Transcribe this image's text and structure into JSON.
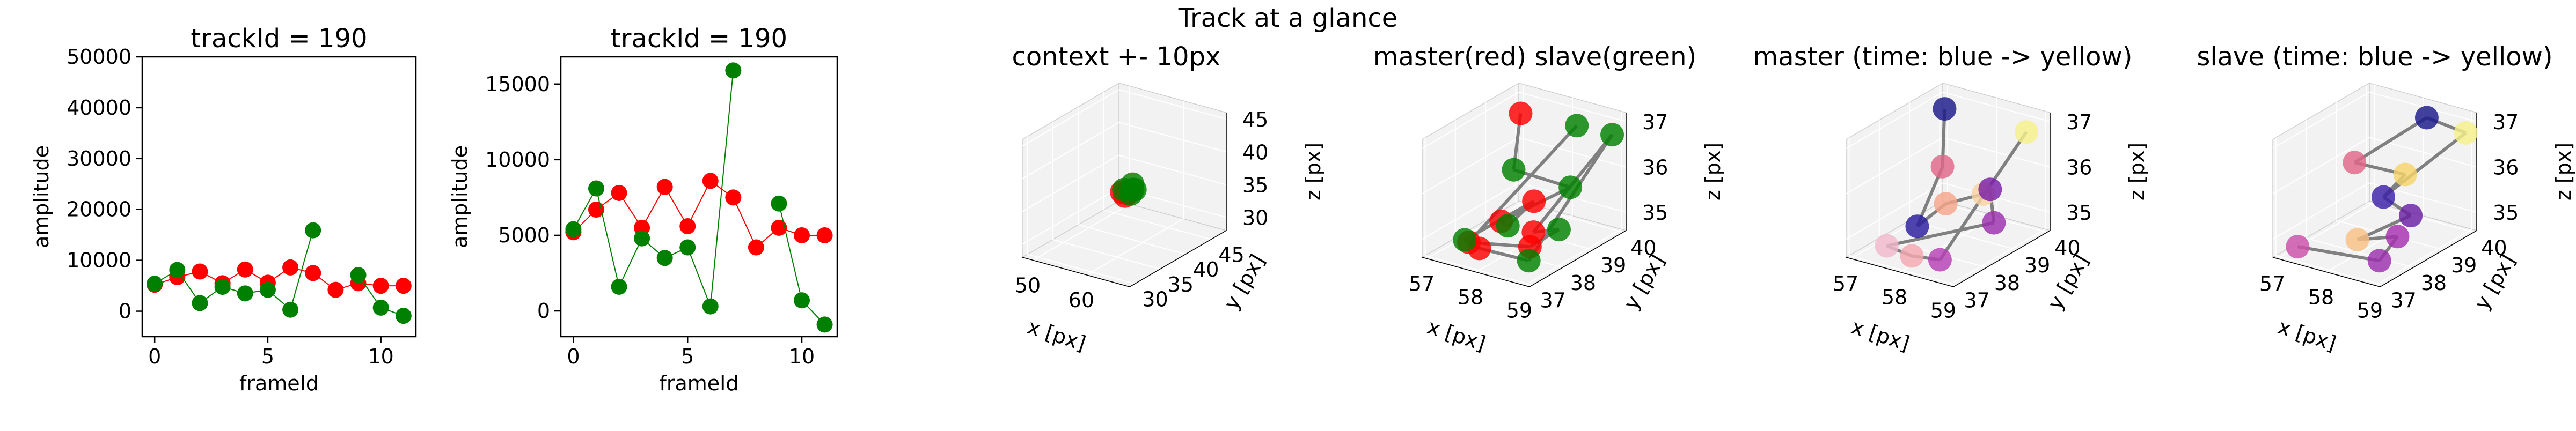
{
  "figure_title": "Track at a glance",
  "colors": {
    "master": "#ff0000",
    "slave": "#008000",
    "line_gray": "#808080",
    "pane": "#f2f2f2",
    "grid": "#e6e6e6"
  },
  "chart_data": [
    {
      "type": "line",
      "title": "trackId = 190",
      "xlabel": "frameId",
      "ylabel": "amplitude",
      "xlim": [
        -0.55,
        11.55
      ],
      "ylim": [
        -5000,
        50000
      ],
      "xticks": [
        0,
        5,
        10
      ],
      "yticks": [
        0,
        10000,
        20000,
        30000,
        40000,
        50000
      ],
      "series": [
        {
          "color": "#ff0000",
          "x": [
            0,
            1,
            2,
            3,
            4,
            5,
            6,
            7,
            8,
            9,
            10,
            11
          ],
          "y": [
            5200,
            6700,
            7800,
            5500,
            8200,
            5600,
            8600,
            7500,
            4200,
            5500,
            5000,
            5000
          ]
        },
        {
          "color": "#008000",
          "x": [
            0,
            1,
            2,
            3,
            4,
            5,
            6,
            7,
            8,
            9,
            10,
            11
          ],
          "y": [
            5400,
            8100,
            1600,
            4800,
            3500,
            4200,
            300,
            15900,
            null,
            7100,
            700,
            -900
          ]
        }
      ]
    },
    {
      "type": "line",
      "title": "trackId = 190",
      "xlabel": "frameId",
      "ylabel": "amplitude",
      "xlim": [
        -0.55,
        11.55
      ],
      "ylim": [
        -1700,
        16800
      ],
      "xticks": [
        0,
        5,
        10
      ],
      "yticks": [
        0,
        5000,
        10000,
        15000
      ],
      "series": [
        {
          "color": "#ff0000",
          "x": [
            0,
            1,
            2,
            3,
            4,
            5,
            6,
            7,
            8,
            9,
            10,
            11
          ],
          "y": [
            5200,
            6700,
            7800,
            5500,
            8200,
            5600,
            8600,
            7500,
            4200,
            5500,
            5000,
            5000
          ]
        },
        {
          "color": "#008000",
          "x": [
            0,
            1,
            2,
            3,
            4,
            5,
            6,
            7,
            8,
            9,
            10,
            11
          ],
          "y": [
            5400,
            8100,
            1600,
            4800,
            3500,
            4200,
            300,
            15900,
            null,
            7100,
            700,
            -900
          ]
        }
      ]
    },
    {
      "type": "scatter",
      "title": "context +- 10px",
      "xlabel": "x [px]",
      "ylabel": "y [px]",
      "zlabel": "z [px]",
      "xlim": [
        48,
        68
      ],
      "ylim": [
        29,
        48
      ],
      "zlim": [
        28,
        46
      ],
      "xticks": [
        50,
        60
      ],
      "yticks": [
        30,
        35,
        40,
        45
      ],
      "zticks": [
        30,
        35,
        40,
        45
      ],
      "points": [
        {
          "x": 58.2,
          "y": 38.4,
          "z": 35.4,
          "color": "#ff0000"
        },
        {
          "x": 58.5,
          "y": 38.6,
          "z": 35.8,
          "color": "#ff0000"
        },
        {
          "x": 57.8,
          "y": 38.2,
          "z": 36.0,
          "color": "#ff0000"
        },
        {
          "x": 58.0,
          "y": 38.9,
          "z": 35.6,
          "color": "#ff0000"
        },
        {
          "x": 58.9,
          "y": 39.2,
          "z": 36.2,
          "color": "#008000"
        },
        {
          "x": 58.4,
          "y": 38.0,
          "z": 36.6,
          "color": "#008000"
        },
        {
          "x": 59.2,
          "y": 38.5,
          "z": 35.9,
          "color": "#008000"
        },
        {
          "x": 58.6,
          "y": 39.5,
          "z": 36.8,
          "color": "#008000"
        },
        {
          "x": 59.5,
          "y": 39.0,
          "z": 36.4,
          "color": "#008000"
        }
      ]
    },
    {
      "type": "scatter",
      "title": "master(red) slave(green)",
      "xlabel": "x [px]",
      "ylabel": "y [px]",
      "zlabel": "z [px]",
      "xlim": [
        56.9,
        59.1
      ],
      "ylim": [
        36.9,
        40.1
      ],
      "zlim": [
        34.6,
        37.2
      ],
      "xticks": [
        57,
        58,
        59
      ],
      "yticks": [
        37,
        38,
        39,
        40
      ],
      "zticks": [
        35,
        36,
        37
      ],
      "points": [
        {
          "x": 57.0,
          "y": 40.0,
          "z": 36.6,
          "color": "#ff0000"
        },
        {
          "x": 57.9,
          "y": 37.9,
          "z": 35.3,
          "color": "#ff0000"
        },
        {
          "x": 58.2,
          "y": 38.5,
          "z": 35.6,
          "color": "#ff0000"
        },
        {
          "x": 57.7,
          "y": 37.5,
          "z": 34.8,
          "color": "#ff0000"
        },
        {
          "x": 58.5,
          "y": 38.0,
          "z": 35.2,
          "color": "#ff0000"
        },
        {
          "x": 58.8,
          "y": 37.4,
          "z": 35.2,
          "color": "#ff0000"
        },
        {
          "x": 57.3,
          "y": 37.8,
          "z": 34.7,
          "color": "#ff0000"
        },
        {
          "x": 58.4,
          "y": 39.6,
          "z": 36.9,
          "color": "#008000"
        },
        {
          "x": 57.6,
          "y": 38.8,
          "z": 36.0,
          "color": "#008000"
        },
        {
          "x": 58.7,
          "y": 38.9,
          "z": 35.9,
          "color": "#008000"
        },
        {
          "x": 58.1,
          "y": 37.8,
          "z": 35.3,
          "color": "#008000"
        },
        {
          "x": 57.4,
          "y": 37.5,
          "z": 34.9,
          "color": "#008000"
        },
        {
          "x": 58.9,
          "y": 37.2,
          "z": 35.0,
          "color": "#008000"
        },
        {
          "x": 59.0,
          "y": 39.8,
          "z": 36.8,
          "color": "#008000"
        },
        {
          "x": 58.9,
          "y": 38.2,
          "z": 35.3,
          "color": "#008000"
        }
      ],
      "links": [
        [
          0,
          8
        ],
        [
          8,
          9
        ],
        [
          9,
          1
        ],
        [
          1,
          10
        ],
        [
          10,
          2
        ],
        [
          2,
          11
        ],
        [
          11,
          3
        ],
        [
          3,
          12
        ],
        [
          12,
          13
        ],
        [
          13,
          4
        ],
        [
          4,
          14
        ],
        [
          14,
          5
        ],
        [
          5,
          6
        ],
        [
          6,
          7
        ]
      ]
    },
    {
      "type": "scatter",
      "title": "master (time: blue -> yellow)",
      "xlabel": "x [px]",
      "ylabel": "y [px]",
      "zlabel": "z [px]",
      "xlim": [
        56.9,
        59.1
      ],
      "ylim": [
        36.9,
        40.1
      ],
      "zlim": [
        34.6,
        37.2
      ],
      "xticks": [
        57,
        58,
        59
      ],
      "yticks": [
        37,
        38,
        39,
        40
      ],
      "zticks": [
        35,
        36,
        37
      ],
      "points": [
        {
          "x": 57.0,
          "y": 40.0,
          "z": 36.7,
          "color": "#1a1a8a"
        },
        {
          "x": 57.7,
          "y": 38.8,
          "z": 36.1,
          "color": "#e06688"
        },
        {
          "x": 57.8,
          "y": 37.8,
          "z": 35.2,
          "color": "#2a1ba0"
        },
        {
          "x": 58.2,
          "y": 38.1,
          "z": 35.7,
          "color": "#f7a58b"
        },
        {
          "x": 58.6,
          "y": 38.7,
          "z": 35.8,
          "color": "#f9d2a0"
        },
        {
          "x": 58.8,
          "y": 38.6,
          "z": 36.0,
          "color": "#7a1fa8"
        },
        {
          "x": 59.0,
          "y": 38.4,
          "z": 35.4,
          "color": "#9b2fae"
        },
        {
          "x": 57.3,
          "y": 37.6,
          "z": 34.7,
          "color": "#f0b8cc"
        },
        {
          "x": 58.0,
          "y": 37.3,
          "z": 34.8,
          "color": "#f4a7b0"
        },
        {
          "x": 58.7,
          "y": 37.1,
          "z": 35.0,
          "color": "#b63fb4"
        },
        {
          "x": 58.8,
          "y": 39.8,
          "z": 36.8,
          "color": "#f5f08a"
        }
      ],
      "links": [
        [
          0,
          1
        ],
        [
          1,
          2
        ],
        [
          2,
          3
        ],
        [
          3,
          4
        ],
        [
          4,
          5
        ],
        [
          5,
          6
        ],
        [
          6,
          7
        ],
        [
          7,
          8
        ],
        [
          8,
          9
        ],
        [
          9,
          10
        ]
      ]
    },
    {
      "type": "scatter",
      "title": "slave (time: blue -> yellow)",
      "xlabel": "x [px]",
      "ylabel": "y [px]",
      "zlabel": "z [px]",
      "xlim": [
        56.9,
        59.1
      ],
      "ylim": [
        36.9,
        40.1
      ],
      "zlim": [
        34.6,
        37.2
      ],
      "xticks": [
        57,
        58,
        59
      ],
      "yticks": [
        37,
        38,
        39,
        40
      ],
      "zticks": [
        35,
        36,
        37
      ],
      "points": [
        {
          "x": 58.2,
          "y": 39.9,
          "z": 36.9,
          "color": "#1a1a8a"
        },
        {
          "x": 57.4,
          "y": 38.8,
          "z": 36.1,
          "color": "#e06688"
        },
        {
          "x": 58.5,
          "y": 38.7,
          "z": 36.2,
          "color": "#f7d46a"
        },
        {
          "x": 58.3,
          "y": 38.3,
          "z": 35.8,
          "color": "#3a1fa6"
        },
        {
          "x": 58.8,
          "y": 38.4,
          "z": 35.5,
          "color": "#6a1fa3"
        },
        {
          "x": 58.2,
          "y": 37.6,
          "z": 35.1,
          "color": "#f9c184"
        },
        {
          "x": 58.9,
          "y": 37.8,
          "z": 35.3,
          "color": "#a62fb0"
        },
        {
          "x": 58.9,
          "y": 37.2,
          "z": 35.0,
          "color": "#9b2fae"
        },
        {
          "x": 57.1,
          "y": 37.4,
          "z": 34.7,
          "color": "#cc4faa"
        },
        {
          "x": 59.0,
          "y": 39.9,
          "z": 36.8,
          "color": "#f5f08a"
        }
      ],
      "links": [
        [
          0,
          1
        ],
        [
          1,
          2
        ],
        [
          2,
          3
        ],
        [
          3,
          4
        ],
        [
          4,
          5
        ],
        [
          5,
          6
        ],
        [
          6,
          7
        ],
        [
          7,
          8
        ],
        [
          0,
          9
        ],
        [
          9,
          3
        ]
      ]
    }
  ]
}
